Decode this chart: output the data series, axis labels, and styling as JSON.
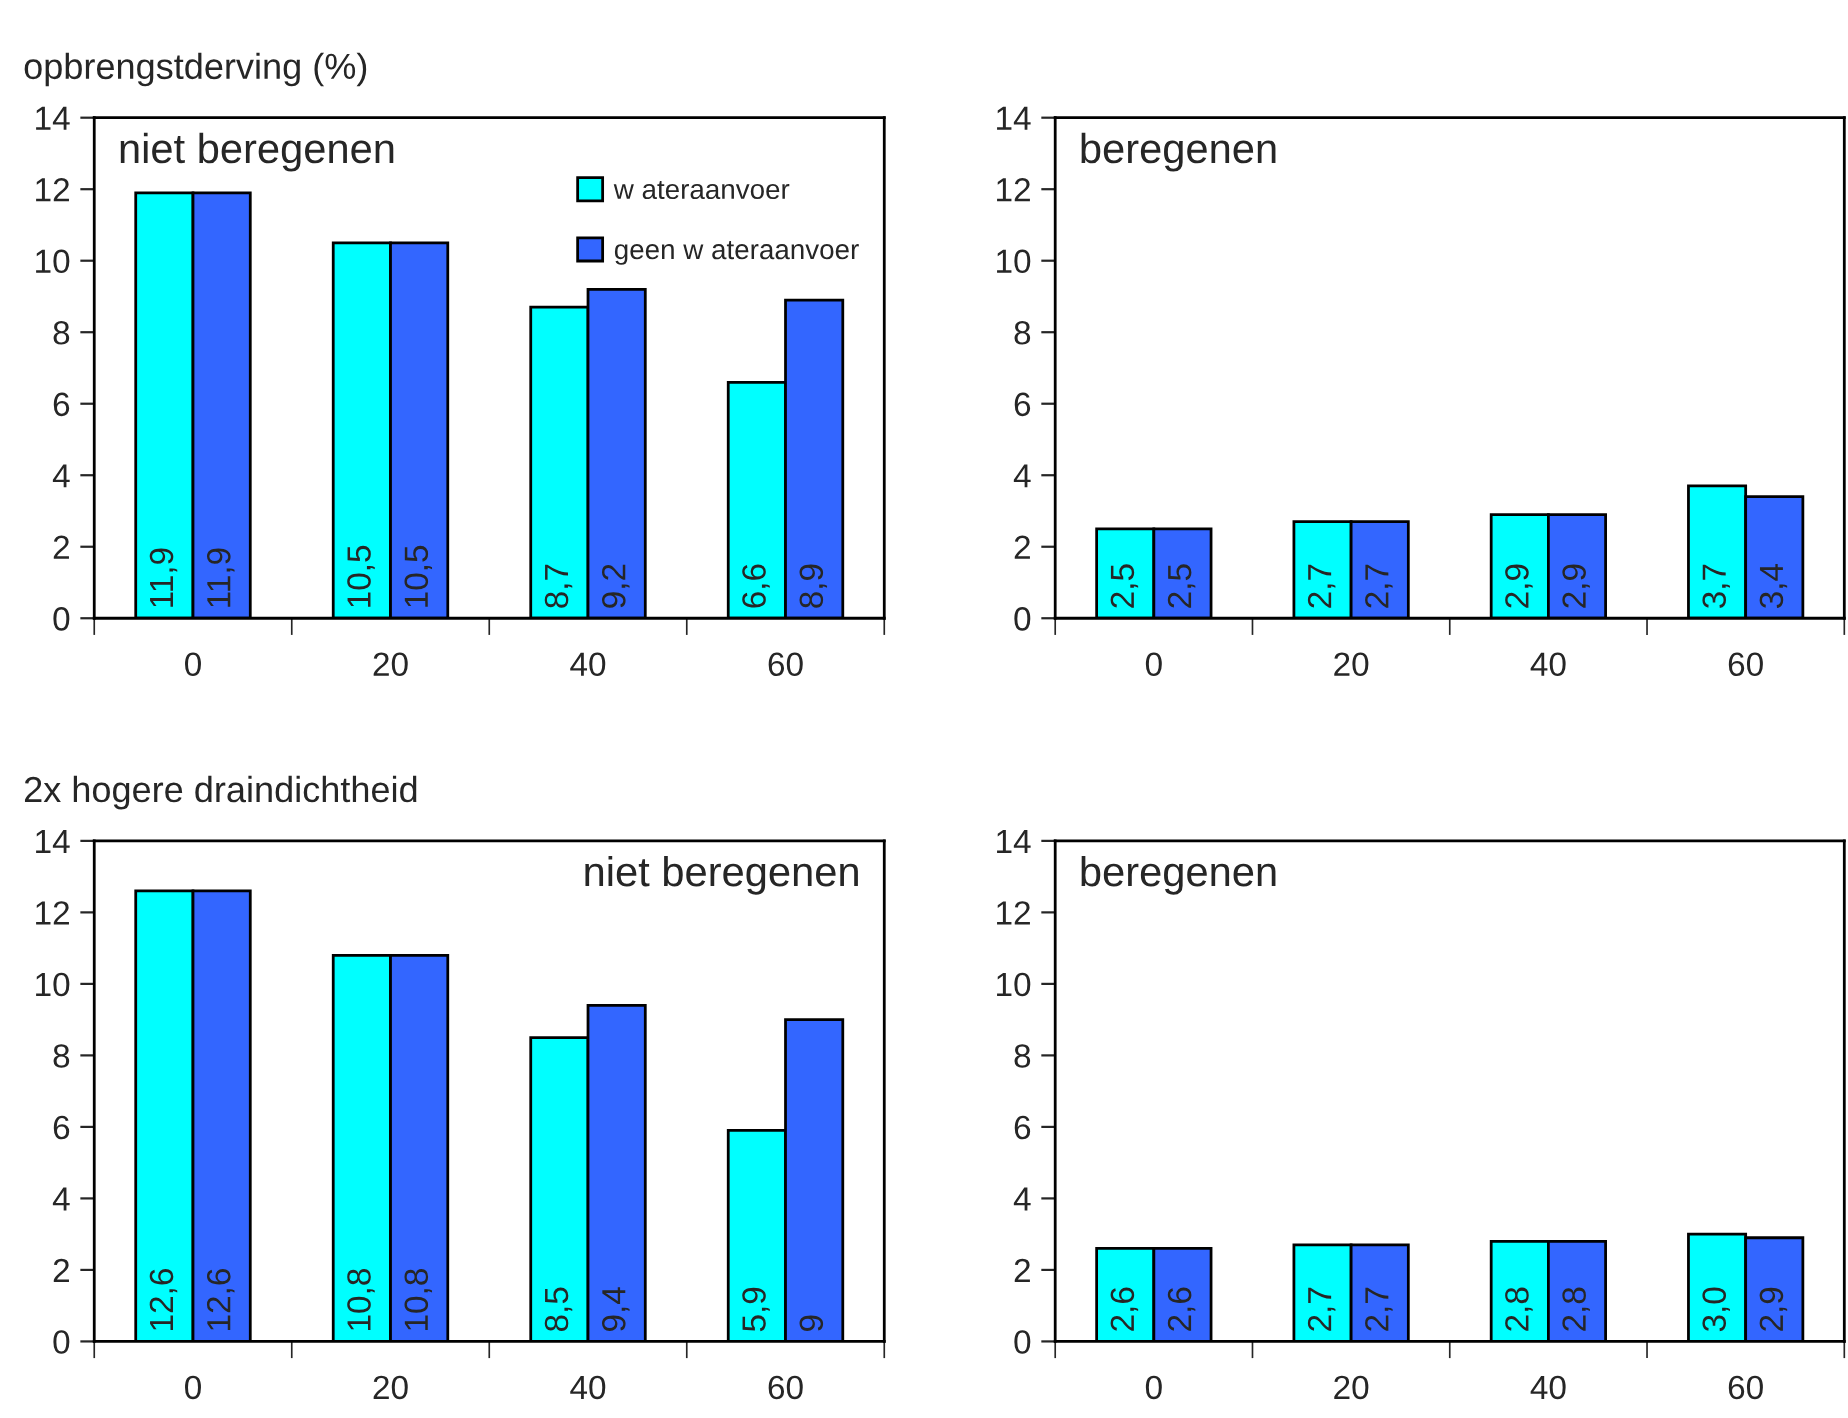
{
  "chart_data": [
    {
      "type": "bar",
      "title": "opbrengstderving (%)",
      "categories": [
        "0",
        "20",
        "40",
        "60"
      ],
      "ylim": [
        0,
        14
      ],
      "yticks": [
        0,
        2,
        4,
        6,
        8,
        10,
        12,
        14
      ],
      "legend": "top right",
      "annotations": [
        "niet beregenen"
      ],
      "series": [
        {
          "name": "w ateraanvoer",
          "color": "#00ffff",
          "values": [
            11.9,
            10.5,
            8.7,
            6.6
          ],
          "value_labels": [
            "11,9",
            "10,5",
            "8,7",
            "6,6"
          ]
        },
        {
          "name": "geen w ateraanvoer",
          "color": "#3366ff",
          "values": [
            11.9,
            10.5,
            9.2,
            8.9
          ],
          "value_labels": [
            "11,9",
            "10,5",
            "9,2",
            "8,9"
          ]
        }
      ]
    },
    {
      "type": "bar",
      "categories": [
        "0",
        "20",
        "40",
        "60"
      ],
      "ylim": [
        0,
        14
      ],
      "yticks": [
        0,
        2,
        4,
        6,
        8,
        10,
        12,
        14
      ],
      "annotations": [
        "beregenen"
      ],
      "series": [
        {
          "color": "#00ffff",
          "values": [
            2.5,
            2.7,
            2.9,
            3.7
          ],
          "value_labels": [
            "2,5",
            "2,7",
            "2,9",
            "3,7"
          ]
        },
        {
          "color": "#3366ff",
          "values": [
            2.5,
            2.7,
            2.9,
            3.4
          ],
          "value_labels": [
            "2,5",
            "2,7",
            "2,9",
            "3,4"
          ]
        }
      ]
    },
    {
      "type": "bar",
      "title": "2x hogere draindichtheid",
      "categories": [
        "0",
        "20",
        "40",
        "60"
      ],
      "ylim": [
        0,
        14
      ],
      "yticks": [
        0,
        2,
        4,
        6,
        8,
        10,
        12,
        14
      ],
      "annotations": [
        "niet beregenen"
      ],
      "series": [
        {
          "color": "#00ffff",
          "values": [
            12.6,
            10.8,
            8.5,
            5.9
          ],
          "value_labels": [
            "12,6",
            "10,8",
            "8,5",
            "5,9"
          ]
        },
        {
          "color": "#3366ff",
          "values": [
            12.6,
            10.8,
            9.4,
            9
          ],
          "value_labels": [
            "12,6",
            "10,8",
            "9,4",
            "9"
          ]
        }
      ]
    },
    {
      "type": "bar",
      "categories": [
        "0",
        "20",
        "40",
        "60"
      ],
      "ylim": [
        0,
        14
      ],
      "yticks": [
        0,
        2,
        4,
        6,
        8,
        10,
        12,
        14
      ],
      "annotations": [
        "beregenen"
      ],
      "series": [
        {
          "color": "#00ffff",
          "values": [
            2.6,
            2.7,
            2.8,
            3.0
          ],
          "value_labels": [
            "2,6",
            "2,7",
            "2,8",
            "3,0"
          ]
        },
        {
          "color": "#3366ff",
          "values": [
            2.6,
            2.7,
            2.8,
            2.9
          ],
          "value_labels": [
            "2,6",
            "2,7",
            "2,8",
            "2,9"
          ]
        }
      ]
    }
  ]
}
